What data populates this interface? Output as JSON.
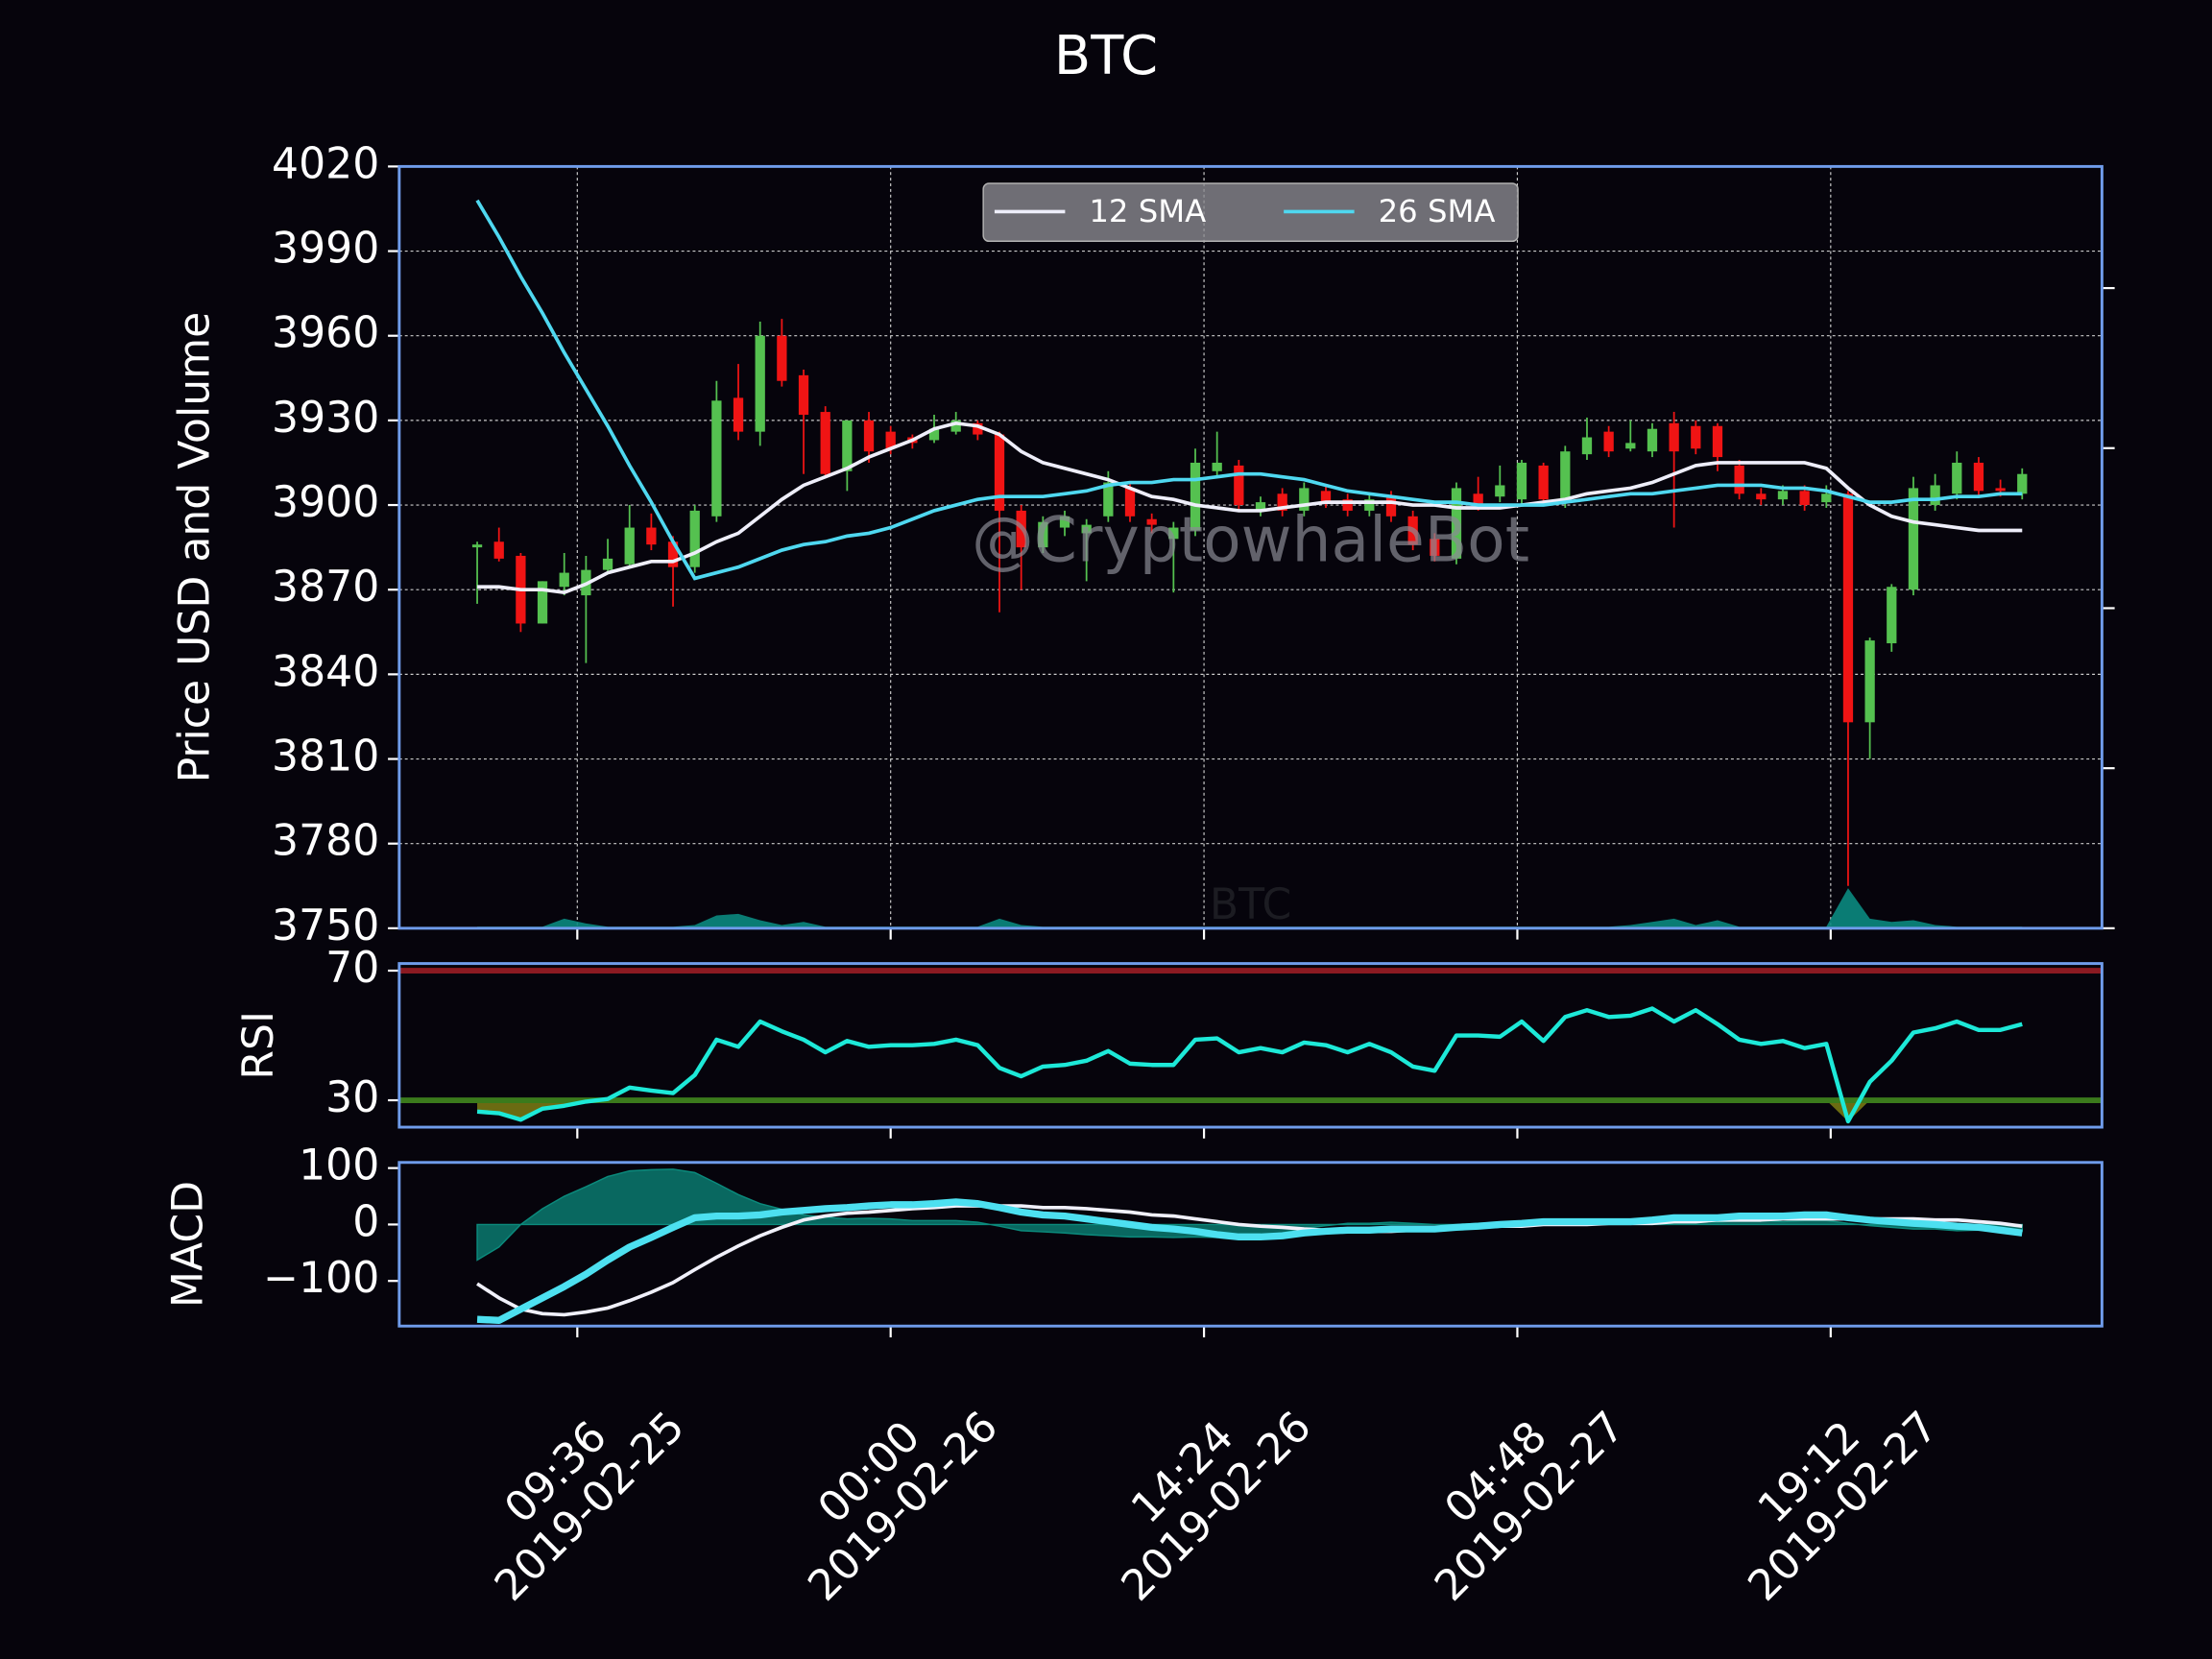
{
  "chart_data": [
    {
      "type": "candlestick",
      "title": "BTC",
      "y_label": "Price USD and Volume",
      "watermark": "@CryptowhaleBot",
      "inner_label": "BTC",
      "x": [
        "2019-02-25 05:00",
        "2019-02-25 06:00",
        "2019-02-25 07:00",
        "2019-02-25 08:00",
        "2019-02-25 09:00",
        "2019-02-25 10:00",
        "2019-02-25 11:00",
        "2019-02-25 12:00",
        "2019-02-25 13:00",
        "2019-02-25 14:00",
        "2019-02-25 15:00",
        "2019-02-25 16:00",
        "2019-02-25 17:00",
        "2019-02-25 18:00",
        "2019-02-25 19:00",
        "2019-02-25 20:00",
        "2019-02-25 21:00",
        "2019-02-25 22:00",
        "2019-02-25 23:00",
        "2019-02-26 00:00",
        "2019-02-26 01:00",
        "2019-02-26 02:00",
        "2019-02-26 03:00",
        "2019-02-26 04:00",
        "2019-02-26 05:00",
        "2019-02-26 06:00",
        "2019-02-26 07:00",
        "2019-02-26 08:00",
        "2019-02-26 09:00",
        "2019-02-26 10:00",
        "2019-02-26 11:00",
        "2019-02-26 12:00",
        "2019-02-26 13:00",
        "2019-02-26 14:00",
        "2019-02-26 15:00",
        "2019-02-26 16:00",
        "2019-02-26 17:00",
        "2019-02-26 18:00",
        "2019-02-26 19:00",
        "2019-02-26 20:00",
        "2019-02-26 21:00",
        "2019-02-26 22:00",
        "2019-02-26 23:00",
        "2019-02-27 00:00",
        "2019-02-27 01:00",
        "2019-02-27 02:00",
        "2019-02-27 03:00",
        "2019-02-27 04:00",
        "2019-02-27 05:00",
        "2019-02-27 06:00",
        "2019-02-27 07:00",
        "2019-02-27 08:00",
        "2019-02-27 09:00",
        "2019-02-27 10:00",
        "2019-02-27 11:00",
        "2019-02-27 12:00",
        "2019-02-27 13:00",
        "2019-02-27 14:00",
        "2019-02-27 15:00",
        "2019-02-27 16:00",
        "2019-02-27 17:00",
        "2019-02-27 18:00",
        "2019-02-27 19:00",
        "2019-02-27 20:00",
        "2019-02-27 21:00",
        "2019-02-27 22:00",
        "2019-02-27 23:00",
        "2019-02-28 00:00",
        "2019-02-28 01:00",
        "2019-02-28 02:00",
        "2019-02-28 03:00",
        "2019-02-28 04:00"
      ],
      "open": [
        3885,
        3887,
        3882,
        3858,
        3871,
        3868,
        3877,
        3879,
        3892,
        3887,
        3878,
        3896,
        3938,
        3926,
        3960,
        3946,
        3933,
        3912,
        3930,
        3926,
        3924,
        3923,
        3926,
        3929,
        3925,
        3898,
        3885,
        3892,
        3890,
        3896,
        3906,
        3895,
        3888,
        3891,
        3912,
        3914,
        3898,
        3904,
        3898,
        3905,
        3902,
        3898,
        3903,
        3896,
        3888,
        3881,
        3904,
        3903,
        3902,
        3914,
        3901,
        3918,
        3926,
        3920,
        3919,
        3929,
        3928,
        3928,
        3914,
        3904,
        3902,
        3905,
        3901,
        3904,
        3823,
        3851,
        3870,
        3900,
        3904,
        3915,
        3906,
        3904
      ],
      "high": [
        3887,
        3892,
        3883,
        3873,
        3883,
        3882,
        3888,
        3900,
        3897,
        3889,
        3900,
        3944,
        3950,
        3965,
        3966,
        3948,
        3935,
        3930,
        3933,
        3928,
        3925,
        3932,
        3933,
        3930,
        3926,
        3900,
        3896,
        3898,
        3895,
        3912,
        3908,
        3897,
        3894,
        3920,
        3926,
        3916,
        3903,
        3906,
        3908,
        3907,
        3904,
        3904,
        3905,
        3898,
        3890,
        3908,
        3910,
        3914,
        3916,
        3915,
        3921,
        3931,
        3928,
        3930,
        3929,
        3933,
        3930,
        3929,
        3916,
        3906,
        3907,
        3907,
        3907,
        3905,
        3853,
        3872,
        3910,
        3911,
        3919,
        3917,
        3909,
        3913
      ],
      "low": [
        3865,
        3880,
        3855,
        3858,
        3868,
        3844,
        3876,
        3878,
        3884,
        3864,
        3876,
        3894,
        3923,
        3921,
        3942,
        3911,
        3910,
        3905,
        3915,
        3918,
        3920,
        3922,
        3925,
        3923,
        3862,
        3870,
        3883,
        3889,
        3873,
        3894,
        3894,
        3890,
        3869,
        3889,
        3910,
        3898,
        3896,
        3896,
        3896,
        3899,
        3896,
        3896,
        3894,
        3884,
        3880,
        3879,
        3898,
        3901,
        3900,
        3900,
        3899,
        3916,
        3917,
        3919,
        3917,
        3892,
        3918,
        3912,
        3902,
        3900,
        3900,
        3898,
        3899,
        3765,
        3810,
        3848,
        3868,
        3898,
        3902,
        3903,
        3903,
        3902
      ],
      "close": [
        3886,
        3881,
        3858,
        3873,
        3876,
        3877,
        3881,
        3892,
        3886,
        3878,
        3898,
        3937,
        3926,
        3960,
        3944,
        3932,
        3911,
        3930,
        3919,
        3920,
        3922,
        3927,
        3930,
        3925,
        3898,
        3885,
        3894,
        3896,
        3893,
        3908,
        3896,
        3893,
        3892,
        3915,
        3915,
        3900,
        3901,
        3898,
        3906,
        3901,
        3898,
        3902,
        3896,
        3886,
        3882,
        3906,
        3900,
        3907,
        3915,
        3902,
        3919,
        3924,
        3919,
        3922,
        3927,
        3919,
        3920,
        3917,
        3904,
        3902,
        3905,
        3900,
        3904,
        3823,
        3852,
        3871,
        3906,
        3907,
        3915,
        3905,
        3905,
        3911
      ],
      "up_color": "#55c150",
      "down_color": "#f01414",
      "series": [
        {
          "name": "12 SMA",
          "color": "#eeeefa",
          "values": [
            3871,
            3871,
            3870,
            3870,
            3869,
            3872,
            3876,
            3878,
            3880,
            3880,
            3883,
            3887,
            3890,
            3896,
            3902,
            3907,
            3910,
            3913,
            3917,
            3920,
            3923,
            3927,
            3929,
            3928,
            3925,
            3919,
            3915,
            3913,
            3911,
            3909,
            3906,
            3903,
            3902,
            3900,
            3899,
            3898,
            3898,
            3899,
            3900,
            3901,
            3901,
            3901,
            3901,
            3900,
            3900,
            3899,
            3899,
            3899,
            3900,
            3901,
            3902,
            3904,
            3905,
            3906,
            3908,
            3911,
            3914,
            3915,
            3915,
            3915,
            3915,
            3915,
            3913,
            3906,
            3900,
            3896,
            3894,
            3893,
            3892,
            3891,
            3891,
            3891
          ]
        },
        {
          "name": "26 SMA",
          "color": "#4fd8f0",
          "values": [
            4008,
            3995,
            3981,
            3968,
            3954,
            3941,
            3928,
            3914,
            3901,
            3887,
            3874,
            3876,
            3878,
            3881,
            3884,
            3886,
            3887,
            3889,
            3890,
            3892,
            3895,
            3898,
            3900,
            3902,
            3903,
            3903,
            3903,
            3904,
            3905,
            3907,
            3908,
            3908,
            3909,
            3909,
            3910,
            3911,
            3911,
            3910,
            3909,
            3907,
            3905,
            3904,
            3903,
            3902,
            3901,
            3901,
            3900,
            3900,
            3900,
            3900,
            3901,
            3902,
            3903,
            3904,
            3904,
            3905,
            3906,
            3907,
            3907,
            3907,
            3906,
            3906,
            3905,
            3903,
            3901,
            3901,
            3902,
            3902,
            3903,
            3903,
            3904,
            3904
          ]
        }
      ],
      "volume": {
        "axis": "y2",
        "color": "#0b8a80",
        "values": [
          0.01,
          0.01,
          0.01,
          0.01,
          0.06,
          0.03,
          0.01,
          0.01,
          0.01,
          0.01,
          0.02,
          0.08,
          0.09,
          0.05,
          0.02,
          0.04,
          0.01,
          0.01,
          0.01,
          0.01,
          0.01,
          0.01,
          0.01,
          0.01,
          0.06,
          0.02,
          0.01,
          0.01,
          0.01,
          0.01,
          0.01,
          0.01,
          0.01,
          0.01,
          0.01,
          0.01,
          0.01,
          0.01,
          0.01,
          0.01,
          0.01,
          0.01,
          0.01,
          0.01,
          0.01,
          0.01,
          0.01,
          0.01,
          0.01,
          0.01,
          0.01,
          0.01,
          0.01,
          0.02,
          0.04,
          0.06,
          0.02,
          0.05,
          0.01,
          0.01,
          0.01,
          0.01,
          0.01,
          0.25,
          0.06,
          0.04,
          0.05,
          0.02,
          0.01,
          0.01,
          0.01,
          0.01
        ]
      },
      "xlim": [
        "2019-02-25 01:25",
        "2019-02-28 07:40"
      ],
      "xticks": [
        {
          "value": "2019-02-25 09:36",
          "label": "09:36\n2019-02-25"
        },
        {
          "value": "2019-02-26 00:00",
          "label": "00:00\n2019-02-26"
        },
        {
          "value": "2019-02-26 14:24",
          "label": "14:24\n2019-02-26"
        },
        {
          "value": "2019-02-27 04:48",
          "label": "04:48\n2019-02-27"
        },
        {
          "value": "2019-02-27 19:12",
          "label": "19:12\n2019-02-27"
        }
      ],
      "ylim": [
        3750,
        4020
      ],
      "yticks": [
        3750,
        3780,
        3810,
        3840,
        3870,
        3900,
        3930,
        3960,
        3990,
        4020
      ],
      "y2lim": [
        0,
        4.76
      ],
      "y2ticks": [
        0,
        1,
        2,
        3,
        4
      ],
      "grid": true,
      "legend": "upper center"
    },
    {
      "type": "line",
      "y_label": "RSI",
      "series": [
        {
          "color": "#1de9d8",
          "width": 3,
          "values": [
            26.5,
            26,
            24,
            27.4,
            28.3,
            29.6,
            30.4,
            33.9,
            33,
            32.2,
            37.8,
            48.7,
            46.5,
            54.3,
            51.3,
            48.7,
            44.8,
            48.3,
            46.5,
            47,
            47,
            47.4,
            48.7,
            47,
            40,
            37.4,
            40.4,
            40.9,
            42.2,
            45.2,
            41.3,
            40.9,
            40.9,
            48.7,
            49.1,
            44.8,
            46.1,
            44.8,
            47.8,
            47,
            44.8,
            47.4,
            44.8,
            40.4,
            39.1,
            50,
            50,
            49.6,
            54.3,
            48.3,
            55.7,
            57.8,
            55.7,
            56.1,
            58.3,
            54.3,
            57.8,
            53.5,
            48.7,
            47.4,
            48.3,
            46.1,
            47.4,
            23.5,
            35.7,
            42.2,
            50.9,
            52.2,
            54.3,
            51.7,
            51.7,
            53.5
          ]
        }
      ],
      "hlines": [
        {
          "value": 70,
          "color": "#8b1a22"
        },
        {
          "value": 30,
          "color": "#3b7a1c"
        }
      ],
      "fill_below": {
        "value": 30,
        "color": "#6b6b12"
      },
      "ylim": [
        21.7,
        72.2
      ],
      "yticks": [
        30,
        70
      ]
    },
    {
      "type": "line",
      "y_label": "MACD",
      "series": [
        {
          "color": "#f0f0fa",
          "width": 2.5,
          "values": [
            -105,
            -130,
            -150,
            -158,
            -160,
            -155,
            -148,
            -135,
            -120,
            -103,
            -80,
            -58,
            -38,
            -20,
            -5,
            8,
            15,
            20,
            22,
            25,
            28,
            30,
            33,
            33,
            33,
            33,
            30,
            30,
            28,
            25,
            22,
            17,
            15,
            10,
            5,
            0,
            -3,
            -5,
            -8,
            -10,
            -12,
            -12,
            -12,
            -10,
            -8,
            -5,
            -5,
            -3,
            -3,
            0,
            0,
            0,
            2,
            2,
            2,
            5,
            5,
            8,
            8,
            8,
            10,
            10,
            10,
            10,
            10,
            10,
            10,
            8,
            8,
            5,
            2,
            -3
          ]
        },
        {
          "color": "#4de0f0",
          "width": 5,
          "values": [
            -168,
            -170,
            -150,
            -130,
            -110,
            -88,
            -63,
            -40,
            -23,
            -5,
            12,
            15,
            15,
            17,
            22,
            25,
            28,
            30,
            33,
            35,
            35,
            37,
            40,
            37,
            30,
            22,
            17,
            15,
            10,
            5,
            0,
            -5,
            -8,
            -12,
            -18,
            -22,
            -22,
            -20,
            -15,
            -12,
            -10,
            -10,
            -8,
            -8,
            -8,
            -5,
            -3,
            0,
            2,
            5,
            5,
            5,
            5,
            5,
            8,
            12,
            12,
            12,
            15,
            15,
            15,
            17,
            17,
            12,
            8,
            5,
            2,
            0,
            -3,
            -5,
            -10,
            -15
          ]
        }
      ],
      "histogram": {
        "color": "#0b8a7c",
        "values": [
          -63,
          -40,
          0,
          28,
          50,
          67,
          85,
          95,
          97,
          98,
          92,
          73,
          53,
          37,
          27,
          17,
          13,
          10,
          11,
          10,
          7,
          7,
          7,
          4,
          -3,
          -11,
          -13,
          -15,
          -18,
          -20,
          -22,
          -22,
          -23,
          -22,
          -23,
          -22,
          -19,
          -15,
          -7,
          -2,
          2,
          2,
          4,
          2,
          0,
          0,
          2,
          3,
          5,
          5,
          5,
          5,
          3,
          3,
          6,
          7,
          7,
          4,
          7,
          7,
          5,
          7,
          7,
          2,
          -2,
          -5,
          -8,
          -8,
          -11,
          -10,
          -12,
          -12
        ]
      },
      "ylim": [
        -180,
        110
      ],
      "yticks": [
        {
          "value": -100,
          "label": "−100"
        },
        0,
        100
      ]
    }
  ]
}
